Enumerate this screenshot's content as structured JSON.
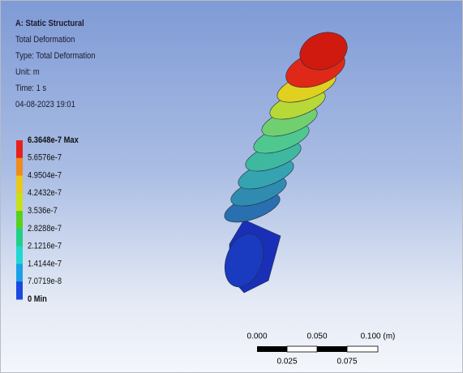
{
  "header": {
    "lines": [
      "A: Static Structural",
      "Total Deformation",
      "Type: Total Deformation",
      "Unit: m",
      "Time: 1 s",
      "04-08-2023 19:01"
    ]
  },
  "legend": {
    "labels": [
      "6.3648e-7 Max",
      "5.6576e-7",
      "4.9504e-7",
      "4.2432e-7",
      "3.536e-7",
      "2.8288e-7",
      "2.1216e-7",
      "1.4144e-7",
      "7.0719e-8",
      "0 Min"
    ],
    "colors": [
      "#e8201c",
      "#f08c1c",
      "#e8c81c",
      "#c8e01c",
      "#58d020",
      "#20d088",
      "#20d8d0",
      "#1aa0e8",
      "#1a48e0",
      "#1414a0"
    ]
  },
  "scale_bar": {
    "top_labels": [
      "0.000",
      "0.050",
      "0.100 (m)"
    ],
    "bottom_labels": [
      "0.025",
      "0.075"
    ]
  }
}
